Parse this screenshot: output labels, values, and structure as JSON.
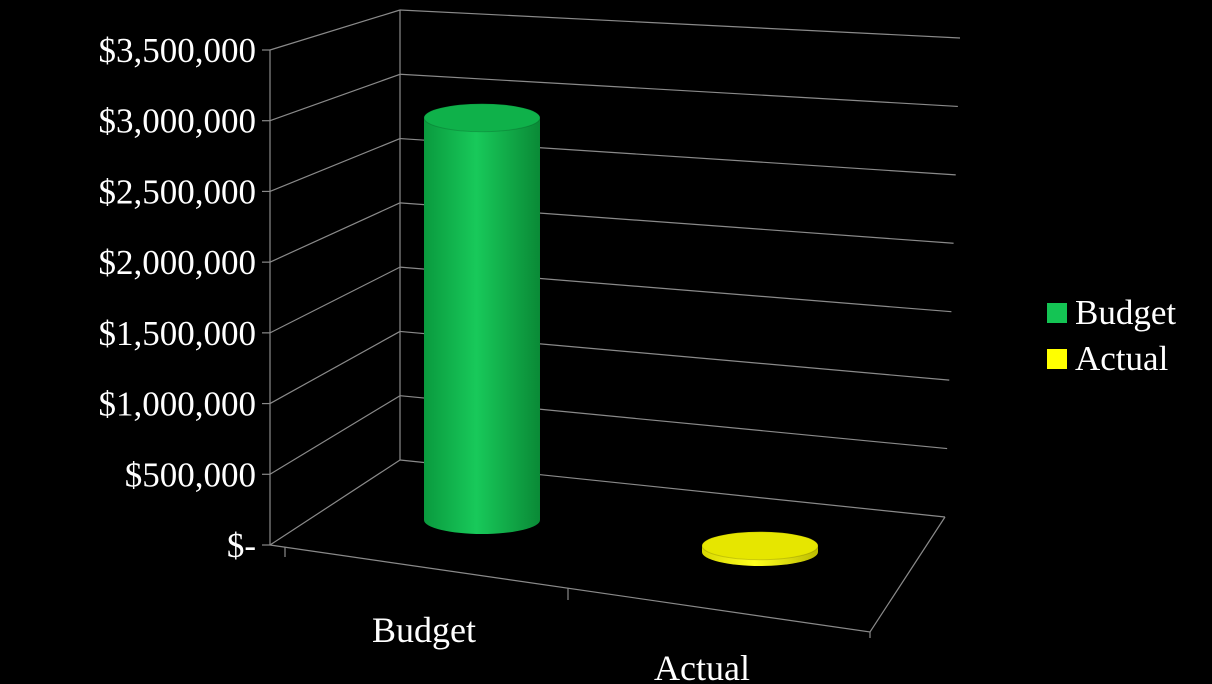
{
  "chart_data": {
    "type": "bar",
    "style": "3d-cylinder",
    "categories": [
      "Budget",
      "Actual"
    ],
    "series": [
      {
        "name": "Budget",
        "values": [
          3200000,
          null
        ],
        "color": "#14c454"
      },
      {
        "name": "Actual",
        "values": [
          null,
          50000
        ],
        "color": "#ffff00"
      }
    ],
    "ylim": [
      0,
      3500000
    ],
    "yticks": [
      0,
      500000,
      1000000,
      1500000,
      2000000,
      2500000,
      3000000,
      3500000
    ],
    "ytick_labels": [
      "$-",
      "$500,000",
      "$1,000,000",
      "$1,500,000",
      "$2,000,000",
      "$2,500,000",
      "$3,000,000",
      "$3,500,000"
    ],
    "grid": true,
    "legend": "right",
    "background": "#000000"
  },
  "legend": {
    "items": [
      {
        "label": "Budget",
        "color": "#14c454"
      },
      {
        "label": "Actual",
        "color": "#ffff00"
      }
    ]
  }
}
